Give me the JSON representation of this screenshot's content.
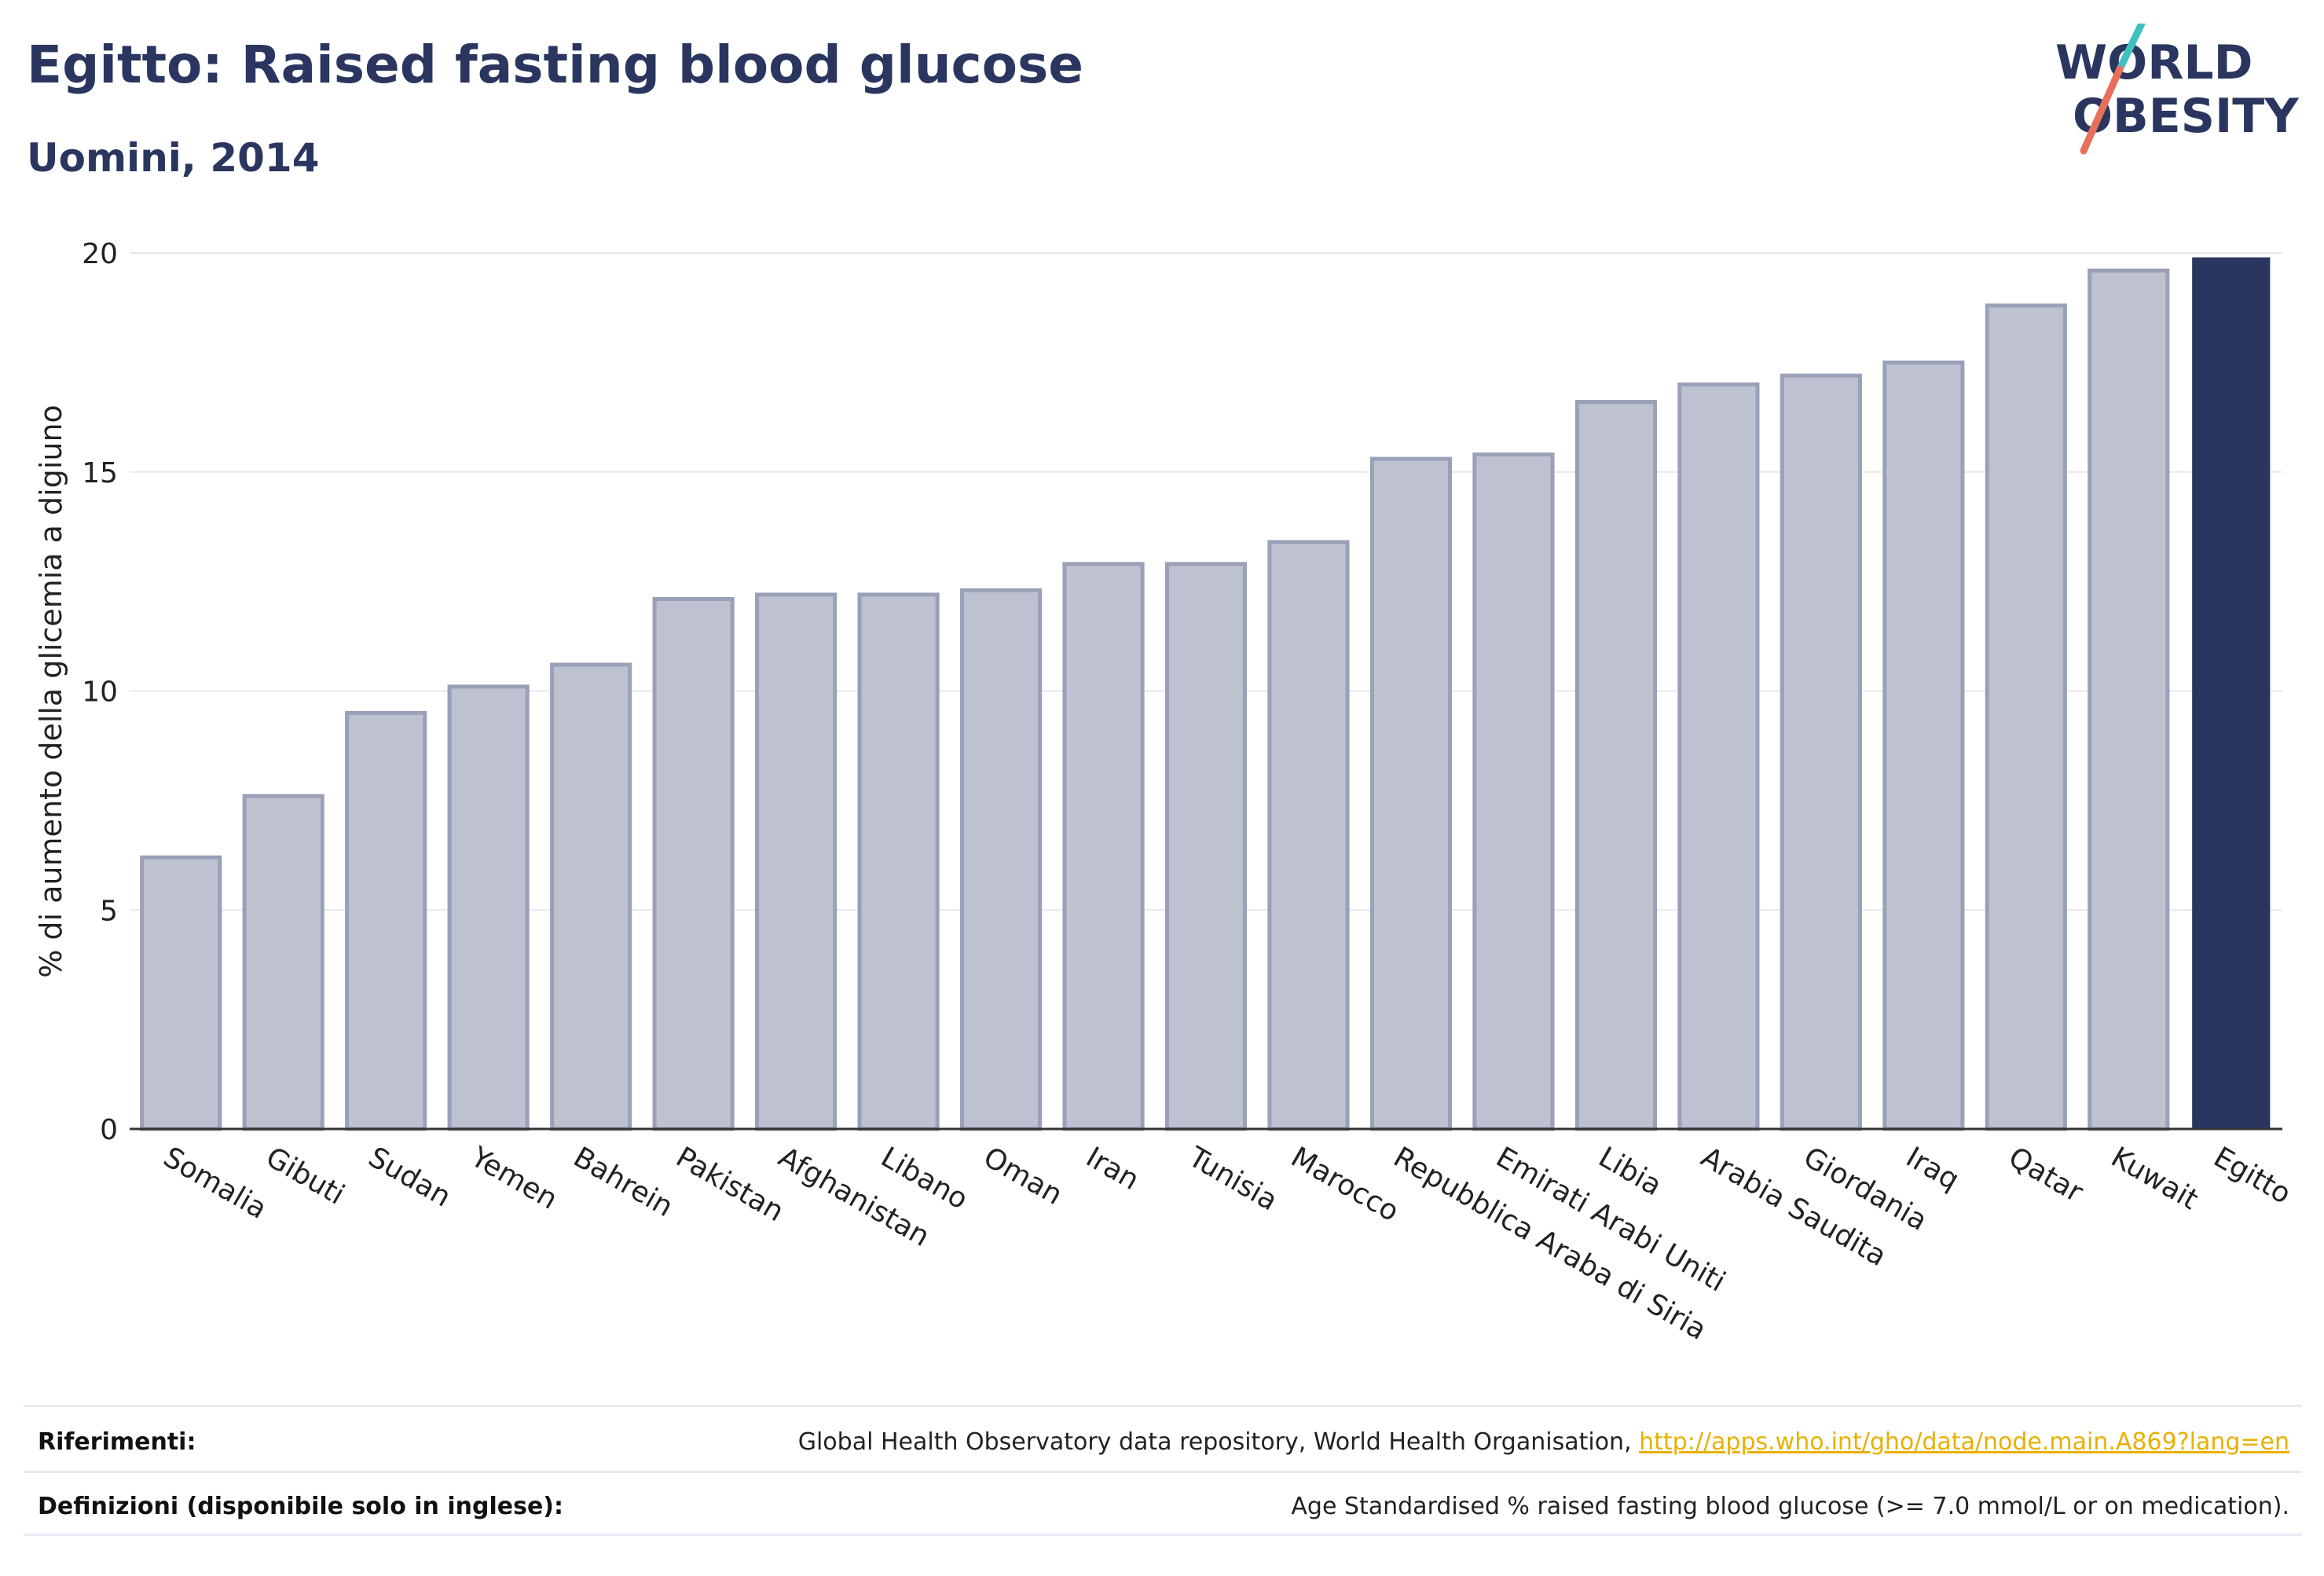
{
  "header": {
    "title": "Egitto: Raised fasting blood glucose",
    "subtitle": "Uomini, 2014"
  },
  "logo": {
    "line1": "WORLD",
    "line2": "OBESITY",
    "slash_color_top": "#3fc1c0",
    "slash_color_bottom": "#e8705a"
  },
  "chart_data": {
    "type": "bar",
    "title": "Egitto: Raised fasting blood glucose",
    "subtitle": "Uomini, 2014",
    "xlabel": "",
    "ylabel": "% di aumento della glicemia a digiuno",
    "ylim": [
      0,
      20
    ],
    "yticks": [
      0,
      5,
      10,
      15,
      20
    ],
    "grid": true,
    "categories": [
      "Somalia",
      "Gibuti",
      "Sudan",
      "Yemen",
      "Bahrein",
      "Pakistan",
      "Afghanistan",
      "Libano",
      "Oman",
      "Iran",
      "Tunisia",
      "Marocco",
      "Repubblica Araba di Siria",
      "Emirati Arabi Uniti",
      "Libia",
      "Arabia Saudita",
      "Giordania",
      "Iraq",
      "Qatar",
      "Kuwait",
      "Egitto"
    ],
    "values": [
      6.2,
      7.6,
      9.5,
      10.1,
      10.6,
      12.1,
      12.2,
      12.2,
      12.3,
      12.9,
      12.9,
      13.4,
      15.3,
      15.4,
      16.6,
      17.0,
      17.2,
      17.5,
      18.8,
      19.6,
      19.9
    ],
    "highlight": "Egitto",
    "colors": {
      "bar": "#bec1cf",
      "bar_border": "#9aa0b8",
      "highlight": "#2a365f",
      "grid": "#e6e8ee",
      "axis": "#333333"
    }
  },
  "footer": {
    "references_label": "Riferimenti:",
    "references_text": "Global Health Observatory data repository, World Health Organisation, ",
    "references_link": "http://apps.who.int/gho/data/node.main.A869?lang=en",
    "definitions_label": "Definizioni (disponibile solo in inglese):",
    "definitions_text": "Age Standardised % raised fasting blood glucose (>= 7.0 mmol/L or on medication)."
  }
}
